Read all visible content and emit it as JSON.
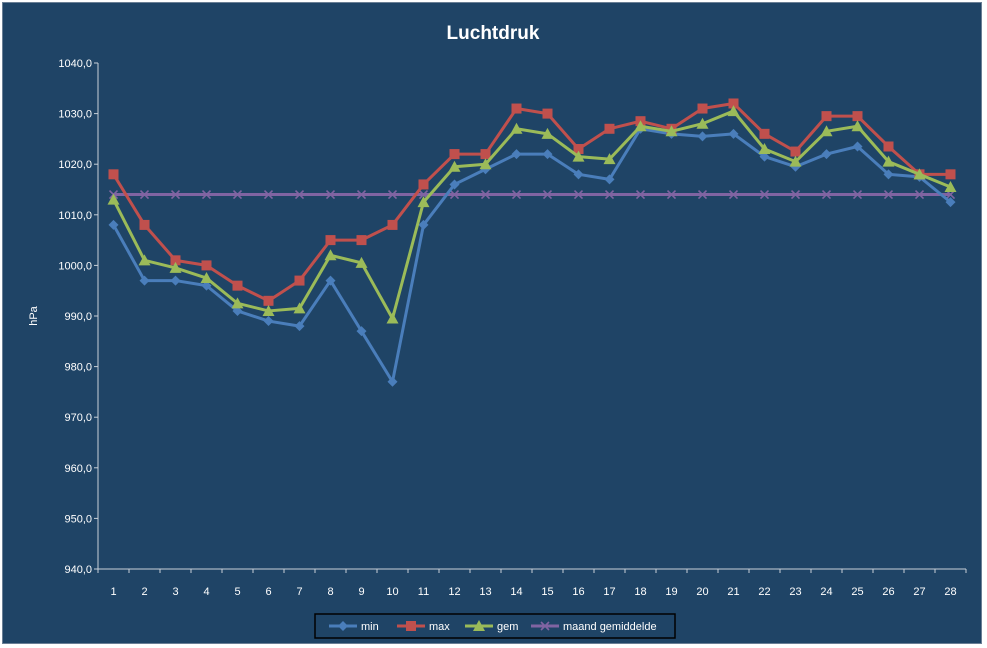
{
  "chart_data": {
    "type": "line",
    "title": "Luchtdruk",
    "xlabel": "",
    "ylabel": "hPa",
    "ylim": [
      940,
      1040
    ],
    "ytick_step": 10,
    "grid": false,
    "legend_position": "bottom",
    "x": [
      1,
      2,
      3,
      4,
      5,
      6,
      7,
      8,
      9,
      10,
      11,
      12,
      13,
      14,
      15,
      16,
      17,
      18,
      19,
      20,
      21,
      22,
      23,
      24,
      25,
      26,
      27,
      28
    ],
    "series": [
      {
        "name": "min",
        "color": "#4a7ebb",
        "marker": "diamond",
        "values": [
          1008,
          997,
          997,
          996,
          991,
          989,
          988,
          997,
          987,
          977,
          1008,
          1016,
          1019,
          1022,
          1022,
          1018,
          1017,
          1027,
          1026,
          1025.5,
          1026,
          1021.5,
          1019.5,
          1022,
          1023.5,
          1018,
          1017.5,
          1012.5
        ]
      },
      {
        "name": "max",
        "color": "#c0504d",
        "marker": "square",
        "values": [
          1018,
          1008,
          1001,
          1000,
          996,
          993,
          997,
          1005,
          1005,
          1008,
          1016,
          1022,
          1022,
          1031,
          1030,
          1023,
          1027,
          1028.5,
          1027,
          1031,
          1032,
          1026,
          1022.5,
          1029.5,
          1029.5,
          1023.5,
          1018,
          1018
        ]
      },
      {
        "name": "gem",
        "color": "#9bbb59",
        "marker": "triangle",
        "values": [
          1013,
          1001,
          999.5,
          997.5,
          992.5,
          991,
          991.5,
          1002,
          1000.5,
          989.5,
          1012.5,
          1019.5,
          1020,
          1027,
          1026,
          1021.5,
          1021,
          1027.5,
          1026.5,
          1028,
          1030.5,
          1023,
          1020.5,
          1026.5,
          1027.5,
          1020.5,
          1018,
          1015.5
        ]
      },
      {
        "name": "maand gemiddelde",
        "color": "#8064a2",
        "marker": "x",
        "values": [
          1014,
          1014,
          1014,
          1014,
          1014,
          1014,
          1014,
          1014,
          1014,
          1014,
          1014,
          1014,
          1014,
          1014,
          1014,
          1014,
          1014,
          1014,
          1014,
          1014,
          1014,
          1014,
          1014,
          1014,
          1014,
          1014,
          1014,
          1014
        ]
      }
    ]
  }
}
